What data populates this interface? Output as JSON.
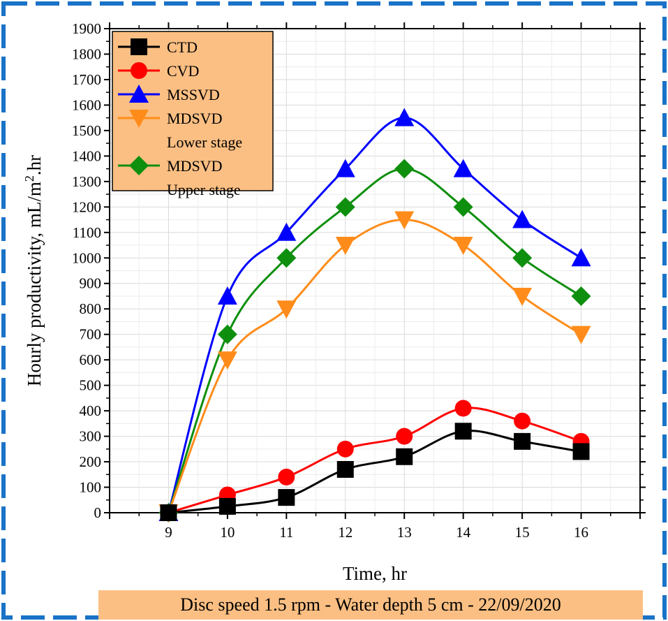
{
  "chart_data": {
    "type": "line",
    "title": "",
    "xlabel": "Time, hr",
    "ylabel": "Hourly productivity, mL/m2.hr",
    "xlim": [
      8,
      17
    ],
    "ylim": [
      0,
      1900
    ],
    "x_ticks": [
      "9",
      "10",
      "11",
      "12",
      "13",
      "14",
      "15",
      "16"
    ],
    "y_ticks": [
      "0",
      "100",
      "200",
      "300",
      "400",
      "500",
      "600",
      "700",
      "800",
      "900",
      "1000",
      "1100",
      "1200",
      "1300",
      "1400",
      "1500",
      "1600",
      "1700",
      "1800",
      "1900"
    ],
    "grid": true,
    "legend_position": "top-left",
    "x": [
      9,
      10,
      11,
      12,
      13,
      14,
      15,
      16
    ],
    "series": [
      {
        "name": "CTD",
        "values": [
          0,
          25,
          60,
          170,
          220,
          320,
          280,
          240
        ],
        "color": "#000000",
        "marker": "square"
      },
      {
        "name": "CVD",
        "values": [
          0,
          70,
          140,
          250,
          300,
          410,
          360,
          280
        ],
        "color": "#ff0000",
        "marker": "circle"
      },
      {
        "name": "MSSVD",
        "values": [
          0,
          850,
          1100,
          1350,
          1550,
          1350,
          1150,
          1000
        ],
        "color": "#0000ff",
        "marker": "triangle-up"
      },
      {
        "name": "MDSVD\nLower stage",
        "values": [
          0,
          600,
          800,
          1050,
          1150,
          1050,
          850,
          700
        ],
        "color": "#ff8c1a",
        "marker": "triangle-down"
      },
      {
        "name": "MDSVD\nUpper stage",
        "values": [
          0,
          700,
          1000,
          1200,
          1350,
          1200,
          1000,
          850
        ],
        "color": "#0e8f0e",
        "marker": "diamond"
      }
    ]
  },
  "ylabel_parts": {
    "main": "Hourly productivity, mL/m",
    "sup": "2",
    "tail": ".hr"
  },
  "legend_colors": {
    "background": "#fbbf83"
  },
  "caption": "Disc speed 1.5 rpm - Water depth 5 cm - 22/09/2020",
  "frame_color": "#1a73c7"
}
